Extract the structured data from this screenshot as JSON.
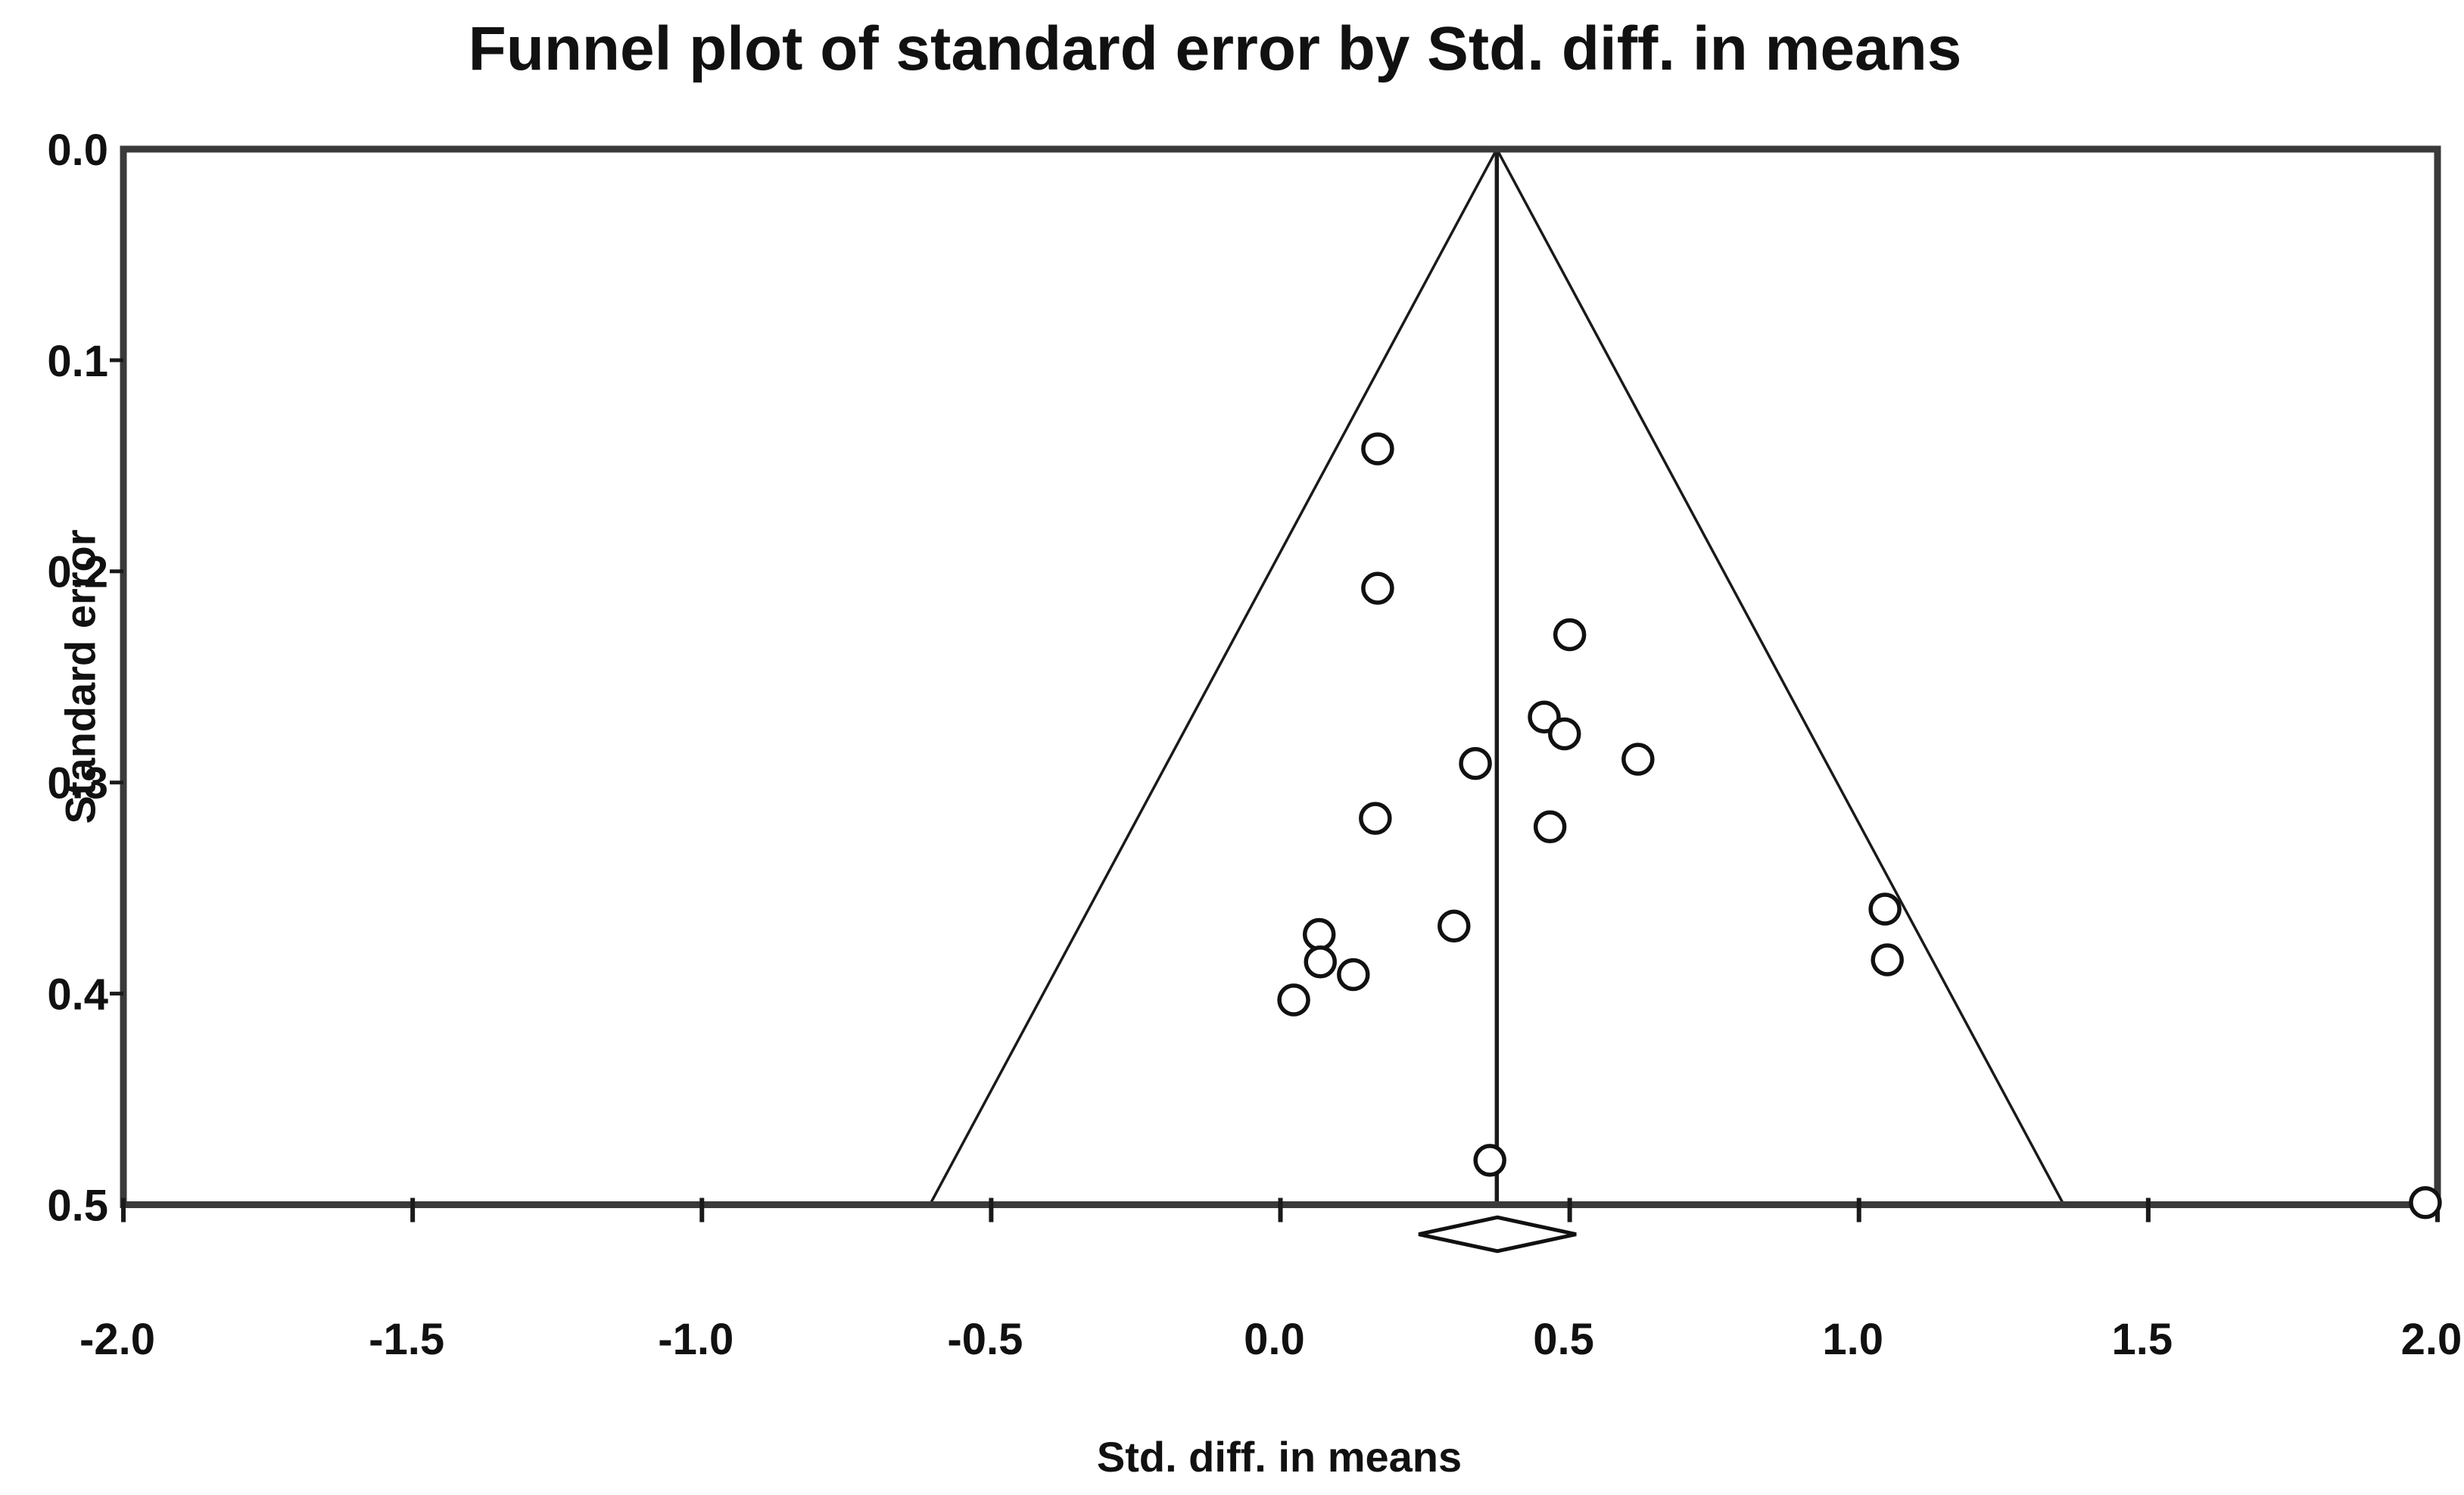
{
  "title": "Funnel plot of standard error by Std. diff. in means",
  "x_axis": {
    "label": "Std. diff. in means",
    "min": -2.0,
    "max": 2.0,
    "ticks": [
      {
        "value": -2.0,
        "label": "-2.0"
      },
      {
        "value": -1.5,
        "label": "-1.5"
      },
      {
        "value": -1.0,
        "label": "-1.0"
      },
      {
        "value": -0.5,
        "label": "-0.5"
      },
      {
        "value": 0.0,
        "label": "0.0"
      },
      {
        "value": 0.5,
        "label": "0.5"
      },
      {
        "value": 1.0,
        "label": "1.0"
      },
      {
        "value": 1.5,
        "label": "1.5"
      },
      {
        "value": 2.0,
        "label": "2.0"
      }
    ]
  },
  "y_axis": {
    "label": "Standard error",
    "min": 0.0,
    "max": 0.5,
    "ticks": [
      {
        "value": 0.0,
        "label": "0.0"
      },
      {
        "value": 0.1,
        "label": "0.1"
      },
      {
        "value": 0.2,
        "label": "0.2"
      },
      {
        "value": 0.3,
        "label": "0.3"
      },
      {
        "value": 0.4,
        "label": "0.4"
      },
      {
        "value": 0.5,
        "label": "0.5"
      }
    ]
  },
  "chart_data": {
    "type": "scatter",
    "subtype": "meta-analysis-funnel-plot",
    "title": "Funnel plot of standard error by Std. diff. in means",
    "xlabel": "Std. diff. in means",
    "ylabel": "Standard error",
    "xlim": [
      -2.0,
      2.0
    ],
    "ylim": [
      0.0,
      0.5
    ],
    "y_axis_inverted": true,
    "grid": false,
    "legend": "none",
    "marker": "open-circle",
    "points": [
      {
        "x": 0.168,
        "se": 0.142
      },
      {
        "x": 0.168,
        "se": 0.208
      },
      {
        "x": 0.5,
        "se": 0.23
      },
      {
        "x": 0.456,
        "se": 0.269
      },
      {
        "x": 0.491,
        "se": 0.277
      },
      {
        "x": 0.337,
        "se": 0.291
      },
      {
        "x": 0.618,
        "se": 0.289
      },
      {
        "x": 0.164,
        "se": 0.317
      },
      {
        "x": 0.466,
        "se": 0.321
      },
      {
        "x": 0.3,
        "se": 0.368
      },
      {
        "x": 0.067,
        "se": 0.372
      },
      {
        "x": 0.069,
        "se": 0.385
      },
      {
        "x": 0.126,
        "se": 0.391
      },
      {
        "x": 0.023,
        "se": 0.403
      },
      {
        "x": 1.045,
        "se": 0.36
      },
      {
        "x": 1.049,
        "se": 0.384
      },
      {
        "x": 0.362,
        "se": 0.479
      },
      {
        "x": 1.979,
        "se": 0.499
      }
    ],
    "funnel": {
      "apex_x": 0.374,
      "z": 1.96,
      "se_max": 0.5
    },
    "mean_line_x": 0.374,
    "pooled_diamond": {
      "center_x": 0.375,
      "half_width": 0.136,
      "center_se": 0.514,
      "half_height_se": 0.008
    }
  },
  "colors": {
    "background": "#ffffff",
    "border": "#3a3a3a",
    "line": "#1a1a1a",
    "marker_stroke": "#111111",
    "marker_fill": "#ffffff",
    "text": "#111111"
  }
}
